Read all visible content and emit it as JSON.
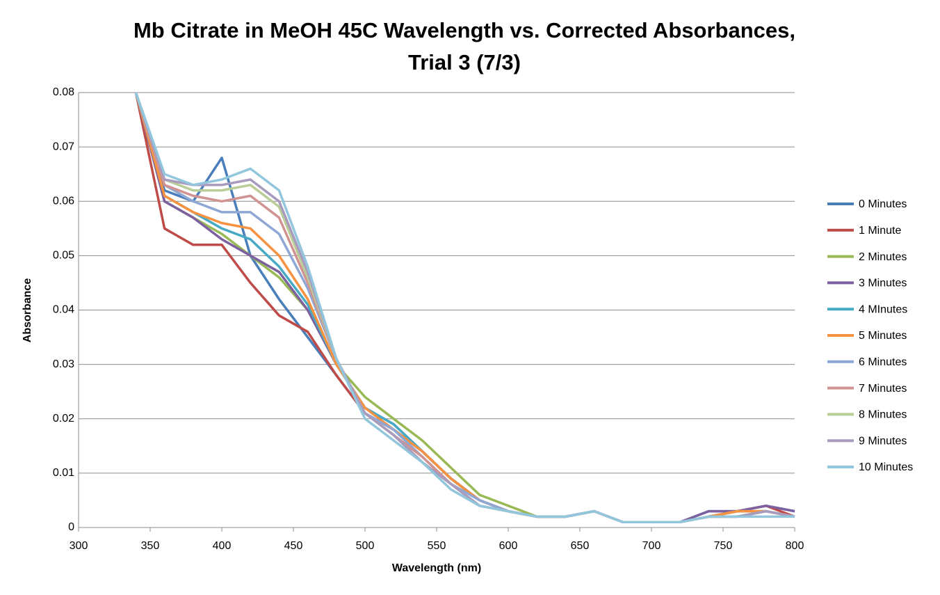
{
  "chart_data": {
    "type": "line",
    "title": [
      "Mb Citrate in MeOH 45C Wavelength vs. Corrected Absorbances,",
      "Trial 3 (7/3)"
    ],
    "x_label": "Wavelength (nm)",
    "y_label": "Absorbance",
    "x": [
      340,
      360,
      380,
      400,
      420,
      440,
      460,
      480,
      500,
      520,
      540,
      560,
      580,
      600,
      620,
      640,
      660,
      680,
      700,
      720,
      740,
      760,
      780,
      800
    ],
    "series": [
      {
        "name": "0 Minutes",
        "color": "#4a7ebb",
        "values": [
          0.08,
          0.062,
          0.06,
          0.068,
          0.05,
          0.042,
          0.035,
          0.028,
          0.021,
          0.018,
          0.014,
          0.009,
          0.005,
          0.003,
          0.002,
          0.002,
          0.003,
          0.001,
          0.001,
          0.001,
          0.003,
          0.003,
          0.004,
          0.003
        ]
      },
      {
        "name": "1 Minute",
        "color": "#be4b48",
        "values": [
          0.08,
          0.055,
          0.052,
          0.052,
          0.045,
          0.039,
          0.036,
          0.028,
          0.021,
          0.018,
          0.014,
          0.009,
          0.005,
          0.003,
          0.002,
          0.002,
          0.003,
          0.001,
          0.001,
          0.001,
          0.002,
          0.003,
          0.004,
          0.002
        ]
      },
      {
        "name": "2 Minutes",
        "color": "#98b954",
        "values": [
          0.08,
          0.06,
          0.057,
          0.054,
          0.05,
          0.046,
          0.04,
          0.03,
          0.024,
          0.02,
          0.016,
          0.011,
          0.006,
          0.004,
          0.002,
          0.002,
          0.003,
          0.001,
          0.001,
          0.001,
          0.002,
          0.003,
          0.003,
          0.002
        ]
      },
      {
        "name": "3 Minutes",
        "color": "#7d60a0",
        "values": [
          0.08,
          0.06,
          0.057,
          0.053,
          0.05,
          0.047,
          0.04,
          0.03,
          0.022,
          0.019,
          0.014,
          0.009,
          0.005,
          0.003,
          0.002,
          0.002,
          0.003,
          0.001,
          0.001,
          0.001,
          0.003,
          0.003,
          0.004,
          0.003
        ]
      },
      {
        "name": "4 MInutes",
        "color": "#46aac5",
        "values": [
          0.08,
          0.061,
          0.058,
          0.055,
          0.053,
          0.048,
          0.041,
          0.03,
          0.022,
          0.019,
          0.014,
          0.009,
          0.005,
          0.003,
          0.002,
          0.002,
          0.003,
          0.001,
          0.001,
          0.001,
          0.002,
          0.003,
          0.003,
          0.002
        ]
      },
      {
        "name": "5 Minutes",
        "color": "#f69240",
        "values": [
          0.08,
          0.061,
          0.058,
          0.056,
          0.055,
          0.05,
          0.042,
          0.03,
          0.022,
          0.018,
          0.014,
          0.009,
          0.005,
          0.003,
          0.002,
          0.002,
          0.003,
          0.001,
          0.001,
          0.001,
          0.002,
          0.003,
          0.003,
          0.002
        ]
      },
      {
        "name": "6 Minutes",
        "color": "#8fa7d5",
        "values": [
          0.08,
          0.063,
          0.06,
          0.058,
          0.058,
          0.054,
          0.044,
          0.031,
          0.021,
          0.018,
          0.013,
          0.008,
          0.005,
          0.003,
          0.002,
          0.002,
          0.003,
          0.001,
          0.001,
          0.001,
          0.002,
          0.002,
          0.003,
          0.002
        ]
      },
      {
        "name": "7 Minutes",
        "color": "#d19392",
        "values": [
          0.08,
          0.063,
          0.061,
          0.06,
          0.061,
          0.057,
          0.045,
          0.031,
          0.021,
          0.017,
          0.013,
          0.008,
          0.004,
          0.003,
          0.002,
          0.002,
          0.003,
          0.001,
          0.001,
          0.001,
          0.002,
          0.002,
          0.003,
          0.002
        ]
      },
      {
        "name": "8 Minutes",
        "color": "#b9cd96",
        "values": [
          0.08,
          0.064,
          0.062,
          0.062,
          0.063,
          0.059,
          0.046,
          0.031,
          0.021,
          0.017,
          0.012,
          0.008,
          0.004,
          0.003,
          0.002,
          0.002,
          0.003,
          0.001,
          0.001,
          0.001,
          0.002,
          0.002,
          0.003,
          0.002
        ]
      },
      {
        "name": "9 Minutes",
        "color": "#a99bbd",
        "values": [
          0.08,
          0.064,
          0.063,
          0.063,
          0.064,
          0.06,
          0.047,
          0.031,
          0.021,
          0.017,
          0.012,
          0.008,
          0.004,
          0.003,
          0.002,
          0.002,
          0.003,
          0.001,
          0.001,
          0.001,
          0.002,
          0.002,
          0.003,
          0.002
        ]
      },
      {
        "name": "10 Minutes",
        "color": "#92c6dc",
        "values": [
          0.08,
          0.065,
          0.063,
          0.064,
          0.066,
          0.062,
          0.048,
          0.031,
          0.02,
          0.016,
          0.012,
          0.007,
          0.004,
          0.003,
          0.002,
          0.002,
          0.003,
          0.001,
          0.001,
          0.001,
          0.002,
          0.002,
          0.002,
          0.002
        ]
      }
    ],
    "xlim": [
      300,
      800
    ],
    "xticks": [
      300,
      350,
      400,
      450,
      500,
      550,
      600,
      650,
      700,
      750,
      800
    ],
    "ylim": [
      0,
      0.08
    ],
    "yticks": [
      0,
      0.01,
      0.02,
      0.03,
      0.04,
      0.05,
      0.06,
      0.07,
      0.08
    ],
    "grid": true,
    "legend": "right"
  }
}
